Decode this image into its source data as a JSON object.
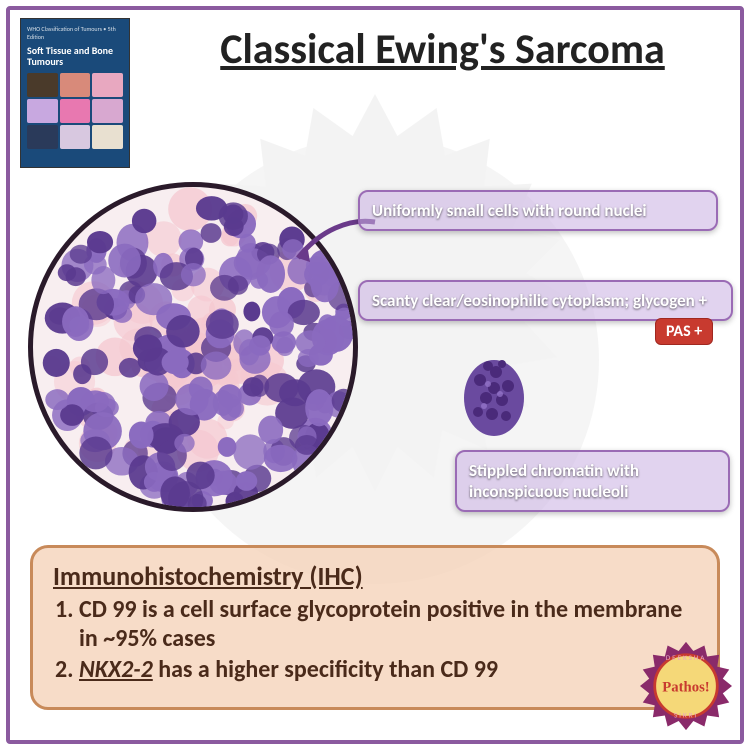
{
  "title": "Classical Ewing's Sarcoma",
  "book": {
    "label": "Soft Tissue and Bone Tumours",
    "header": "WHO Classification of Tumours • 5th Edition"
  },
  "features": {
    "f1": "Uniformly small cells with round nuclei",
    "f2": "Scanty clear/eosinophilic cytoplasm; glycogen +",
    "f3": "Stippled chromatin with inconspicuous nucleoli",
    "pas": "PAS +"
  },
  "ihc": {
    "heading": "Immunohistochemistry (IHC)",
    "item1": "CD 99 is a cell surface glycoprotein positive in the membrane in ~95% cases",
    "item2_emph": "NKX2-2",
    "item2_rest": " has a higher specificity than CD 99"
  },
  "logo": {
    "main": "Pathos!",
    "top": "DEEKSHA",
    "bottom": "SIKRI"
  },
  "colors": {
    "border": "#8b5a9f",
    "feature_border": "#9a6bb5",
    "feature_bg": "rgba(200,175,225,0.55)",
    "pas_bg": "#c83a2f",
    "ihc_bg": "rgba(245,210,185,0.78)",
    "ihc_border": "#c88a5a",
    "nucleus": "#5a3a8f",
    "nucleus_light": "#8a6abf",
    "eosin": "#f5c8d0",
    "book_bg": "#1a4a7a"
  },
  "histology": {
    "circle_diameter": 330,
    "cell_count": 180,
    "cell_size_range": [
      9,
      17
    ],
    "bg_tint": "#f8eef0"
  }
}
